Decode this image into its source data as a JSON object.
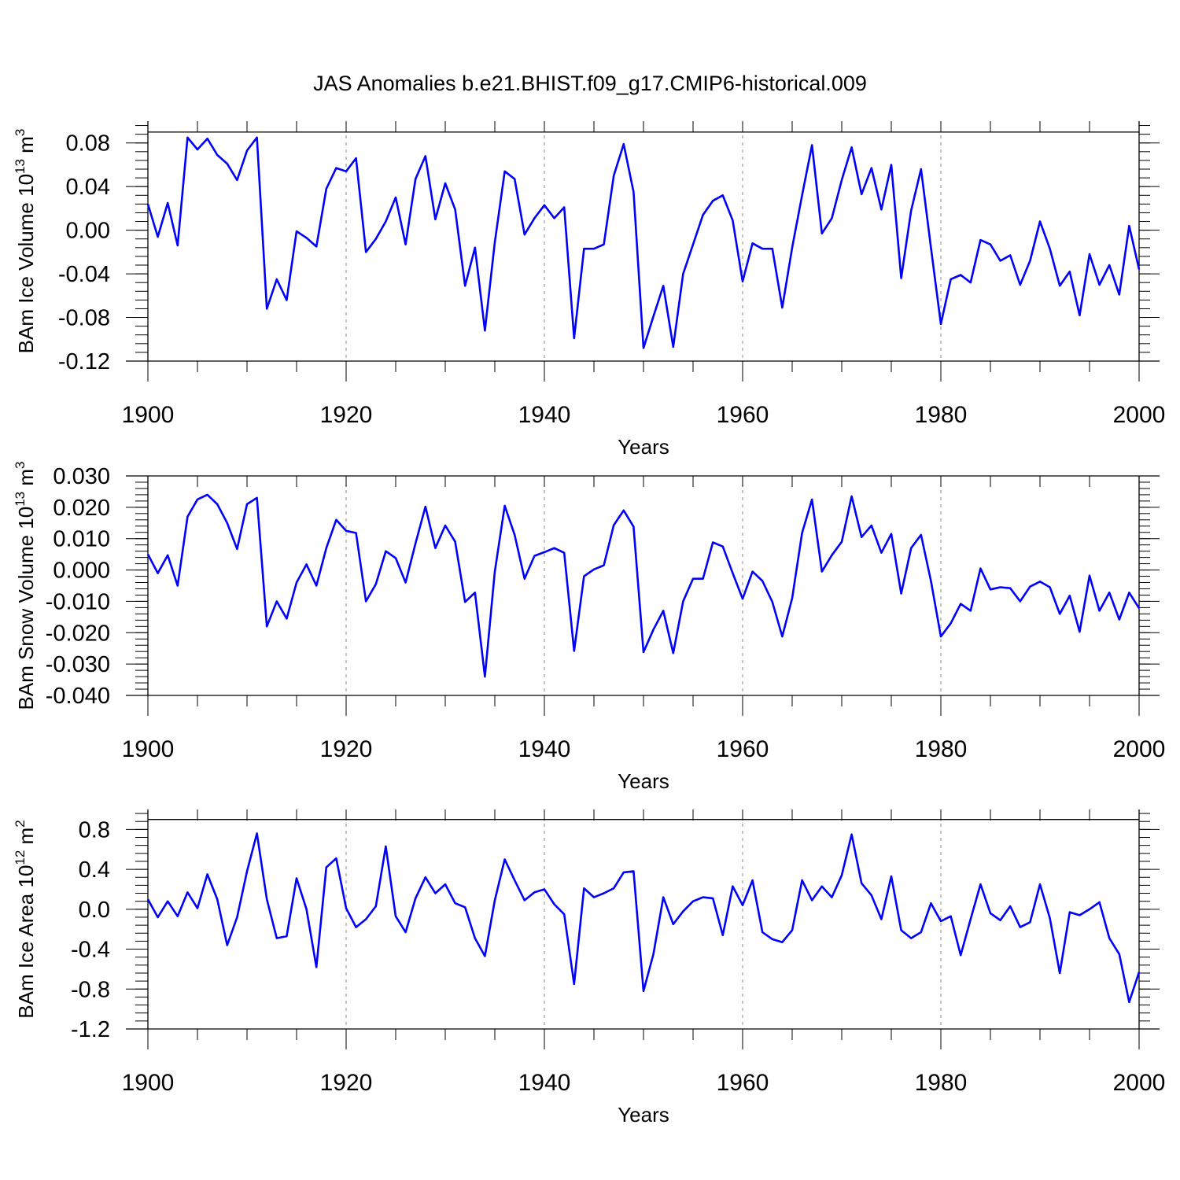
{
  "chart_data": {
    "title": "JAS Anomalies b.e21.BHIST.f09_g17.CMIP6-historical.009",
    "x_start_year": 1900,
    "panels": [
      {
        "type": "line",
        "name": "ice-volume",
        "ylabel": "BAm Ice Volume 10",
        "ylabel_sup": "13",
        "ylabel_unit": " m",
        "ylabel_unit_sup": "3",
        "xlabel": "Years",
        "xlim": [
          1900,
          2000
        ],
        "ylim": [
          -0.12,
          0.1
        ],
        "ref_value": 0.09,
        "yticks": [
          -0.12,
          -0.08,
          -0.04,
          0.0,
          0.04,
          0.08
        ],
        "ytick_labels": [
          "-0.12",
          "-0.08",
          "-0.04",
          "0.00",
          "0.04",
          "0.08"
        ],
        "xticks": [
          1900,
          1920,
          1940,
          1960,
          1980,
          2000
        ],
        "xtick_labels": [
          "1900",
          "1920",
          "1940",
          "1960",
          "1980",
          "2000"
        ],
        "series": [
          {
            "name": "BAm Ice Volume",
            "color": "#0000ff",
            "values": [
              0.024,
              -0.006,
              0.025,
              -0.014,
              0.085,
              0.074,
              0.084,
              0.069,
              0.061,
              0.046,
              0.073,
              0.085,
              -0.072,
              -0.045,
              -0.064,
              -0.001,
              -0.007,
              -0.015,
              0.038,
              0.057,
              0.054,
              0.066,
              -0.02,
              -0.008,
              0.008,
              0.03,
              -0.013,
              0.047,
              0.068,
              0.01,
              0.043,
              0.019,
              -0.051,
              -0.016,
              -0.092,
              -0.011,
              0.054,
              0.047,
              -0.004,
              0.011,
              0.023,
              0.011,
              0.021,
              -0.099,
              -0.017,
              -0.017,
              -0.013,
              0.05,
              0.079,
              0.035,
              -0.108,
              -0.079,
              -0.051,
              -0.107,
              -0.04,
              -0.013,
              0.014,
              0.027,
              0.032,
              0.009,
              -0.047,
              -0.012,
              -0.017,
              -0.017,
              -0.071,
              -0.016,
              0.032,
              0.078,
              -0.003,
              0.011,
              0.046,
              0.076,
              0.033,
              0.057,
              0.019,
              0.06,
              -0.044,
              0.018,
              0.056,
              -0.016,
              -0.086,
              -0.045,
              -0.041,
              -0.048,
              -0.009,
              -0.013,
              -0.028,
              -0.023,
              -0.05,
              -0.028,
              0.008,
              -0.017,
              -0.051,
              -0.038,
              -0.078,
              -0.022,
              -0.05,
              -0.032,
              -0.059,
              0.004,
              -0.036
            ]
          }
        ]
      },
      {
        "type": "line",
        "name": "snow-volume",
        "ylabel": "BAm Snow Volume 10",
        "ylabel_sup": "13",
        "ylabel_unit": " m",
        "ylabel_unit_sup": "3",
        "xlabel": "Years",
        "xlim": [
          1900,
          2000
        ],
        "ylim": [
          -0.04,
          0.03
        ],
        "ref_value": null,
        "yticks": [
          -0.04,
          -0.03,
          -0.02,
          -0.01,
          0.0,
          0.01,
          0.02,
          0.03
        ],
        "ytick_labels": [
          "-0.040",
          "-0.030",
          "-0.020",
          "-0.010",
          "0.000",
          "0.010",
          "0.020",
          "0.030"
        ],
        "xticks": [
          1900,
          1920,
          1940,
          1960,
          1980,
          2000
        ],
        "xtick_labels": [
          "1900",
          "1920",
          "1940",
          "1960",
          "1980",
          "2000"
        ],
        "series": [
          {
            "name": "BAm Snow Volume",
            "color": "#0000ff",
            "values": [
              0.005,
              -0.001,
              0.0047,
              -0.005,
              0.017,
              0.0225,
              0.024,
              0.021,
              0.015,
              0.0067,
              0.021,
              0.023,
              -0.018,
              -0.01,
              -0.0155,
              -0.004,
              0.0018,
              -0.005,
              0.007,
              0.016,
              0.0125,
              0.0118,
              -0.01,
              -0.0045,
              0.006,
              0.0038,
              -0.004,
              0.0085,
              0.0202,
              0.007,
              0.0142,
              0.009,
              -0.0102,
              -0.0072,
              -0.034,
              -0.0005,
              0.0205,
              0.0112,
              -0.0028,
              0.0045,
              0.0057,
              0.007,
              0.0055,
              -0.0258,
              -0.002,
              0.0002,
              0.0015,
              0.0143,
              0.019,
              0.0138,
              -0.0262,
              -0.019,
              -0.013,
              -0.0265,
              -0.01,
              -0.0028,
              -0.0028,
              0.0088,
              0.0075,
              -0.001,
              -0.0092,
              -0.0005,
              -0.0035,
              -0.0102,
              -0.0212,
              -0.009,
              0.0118,
              0.0225,
              -0.0005,
              0.0047,
              0.009,
              0.0235,
              0.0105,
              0.0142,
              0.0055,
              0.0115,
              -0.0075,
              0.007,
              0.0112,
              -0.0035,
              -0.0212,
              -0.017,
              -0.0108,
              -0.013,
              0.0005,
              -0.0062,
              -0.0055,
              -0.0058,
              -0.01,
              -0.0053,
              -0.0037,
              -0.0055,
              -0.014,
              -0.0082,
              -0.0197,
              -0.0018,
              -0.013,
              -0.0072,
              -0.0158,
              -0.0072,
              -0.0122
            ]
          }
        ]
      },
      {
        "type": "line",
        "name": "ice-area",
        "ylabel": "BAm Ice Area 10",
        "ylabel_sup": "12",
        "ylabel_unit": " m",
        "ylabel_unit_sup": "2",
        "xlabel": "Years",
        "xlim": [
          1900,
          2000
        ],
        "ylim": [
          -1.2,
          1.0
        ],
        "ref_value": 0.9,
        "yticks": [
          -1.2,
          -0.8,
          -0.4,
          0.0,
          0.4,
          0.8
        ],
        "ytick_labels": [
          "-1.2",
          "-0.8",
          "-0.4",
          "0.0",
          "0.4",
          "0.8"
        ],
        "xticks": [
          1900,
          1920,
          1940,
          1960,
          1980,
          2000
        ],
        "xtick_labels": [
          "1900",
          "1920",
          "1940",
          "1960",
          "1980",
          "2000"
        ],
        "series": [
          {
            "name": "BAm Ice Area",
            "color": "#0000ff",
            "values": [
              0.1,
              -0.08,
              0.08,
              -0.07,
              0.17,
              0.01,
              0.35,
              0.1,
              -0.36,
              -0.08,
              0.38,
              0.76,
              0.1,
              -0.29,
              -0.27,
              0.31,
              0.0,
              -0.58,
              0.42,
              0.51,
              0.01,
              -0.18,
              -0.1,
              0.03,
              0.63,
              -0.07,
              -0.23,
              0.11,
              0.32,
              0.16,
              0.25,
              0.06,
              0.02,
              -0.29,
              -0.47,
              0.09,
              0.5,
              0.29,
              0.09,
              0.17,
              0.2,
              0.05,
              -0.05,
              -0.75,
              0.21,
              0.12,
              0.16,
              0.21,
              0.37,
              0.38,
              -0.82,
              -0.45,
              0.12,
              -0.15,
              -0.02,
              0.08,
              0.12,
              0.11,
              -0.26,
              0.23,
              0.04,
              0.29,
              -0.23,
              -0.3,
              -0.33,
              -0.21,
              0.29,
              0.09,
              0.23,
              0.12,
              0.34,
              0.75,
              0.26,
              0.14,
              -0.1,
              0.33,
              -0.21,
              -0.29,
              -0.23,
              0.06,
              -0.12,
              -0.07,
              -0.46,
              -0.1,
              0.25,
              -0.04,
              -0.11,
              0.03,
              -0.18,
              -0.13,
              0.25,
              -0.09,
              -0.64,
              -0.03,
              -0.06,
              0.0,
              0.07,
              -0.29,
              -0.45,
              -0.93,
              -0.63
            ]
          }
        ]
      }
    ]
  }
}
